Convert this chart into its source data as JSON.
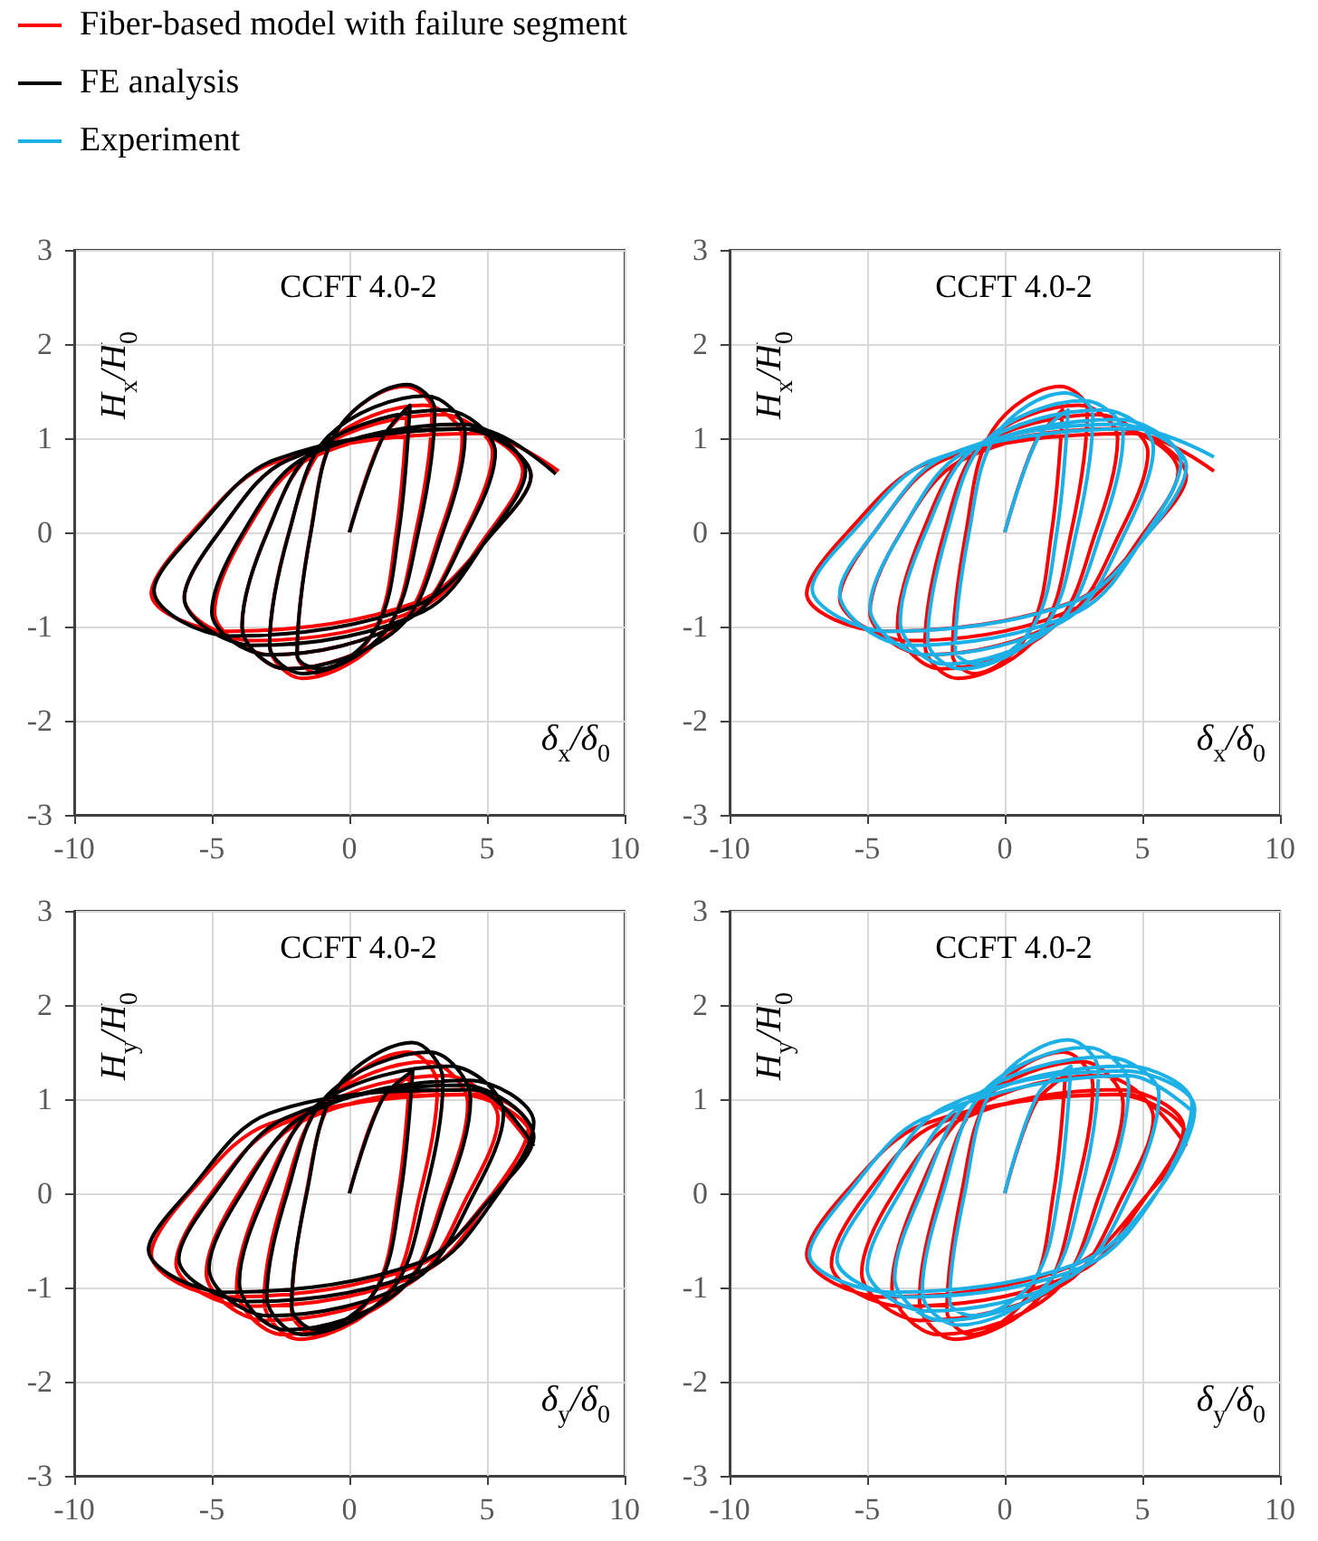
{
  "chart_data": [
    {
      "type": "line",
      "title": "CCFT 4.0-2",
      "xlabel": "δ$_{x}$/δ$_{0}$",
      "ylabel": "H$_{x}$/H$_{0}$",
      "xlim": [
        -10,
        10
      ],
      "ylim": [
        -3,
        3
      ],
      "xticks": [
        -10,
        -5,
        0,
        5,
        10
      ],
      "yticks": [
        -3,
        -2,
        -1,
        0,
        1,
        2,
        3
      ],
      "grid": true,
      "legend": "top left",
      "series": [
        {
          "name": "Fiber-based model with failure segment",
          "color": "#ff0000",
          "x": [
            0,
            1.1,
            2.1,
            1.7,
            0.9,
            -1.1,
            -1.9,
            -1.41,
            -0.43,
            2.02,
            3.0,
            2.41,
            1.23,
            -1.72,
            -2.9,
            -2.2,
            -0.8,
            2.7,
            4.1,
            3.3,
            1.7,
            -2.3,
            -3.9,
            -2.99,
            -1.17,
            3.38,
            5.2,
            4.19,
            2.17,
            -2.88,
            -4.9,
            -3.78,
            -1.54,
            4.06,
            6.3,
            5.07,
            2.61,
            -3.54,
            -6.0,
            -4.74,
            -2.22,
            4.08,
            6.6,
            5.22,
            2.46,
            -4.44,
            -7.2,
            -5.72,
            -2.76,
            4.64,
            7.6
          ],
          "values": [
            0,
            0.95,
            1.3,
            0,
            -1.05,
            -1.5,
            -1.3,
            0,
            1.09,
            1.55,
            1.3,
            0,
            -1.09,
            -1.55,
            -1.2,
            0,
            0.95,
            1.35,
            1.0,
            0,
            -1.02,
            -1.45,
            -1.0,
            0,
            0.88,
            1.25,
            0.85,
            0,
            -0.91,
            -1.3,
            -0.85,
            0,
            0.77,
            1.1,
            0.65,
            0,
            -0.8,
            -1.15,
            -0.7,
            0,
            0.77,
            1.1,
            0.6,
            0,
            -0.74,
            -1.05,
            -0.65,
            0,
            0.74,
            1.05,
            0.65
          ]
        },
        {
          "name": "FE analysis",
          "color": "#000000",
          "x": [
            0,
            1.2,
            2.2,
            1.79,
            0.97,
            -1.08,
            -1.9,
            -1.4,
            -0.4,
            2.1,
            3.1,
            2.5,
            1.3,
            -1.7,
            -2.9,
            -2.19,
            -0.77,
            2.78,
            4.2,
            3.39,
            1.77,
            -2.28,
            -3.9,
            -2.98,
            -1.14,
            3.46,
            5.3,
            4.27,
            2.21,
            -2.94,
            -5.0,
            -3.86,
            -1.58,
            4.12,
            6.4,
            5.16,
            2.68,
            -3.52,
            -6.0,
            -4.74,
            -2.22,
            4.08,
            6.6,
            5.23,
            2.49,
            -4.36,
            -7.1,
            -5.64,
            -2.72,
            4.58,
            7.5
          ],
          "values": [
            0,
            1.0,
            1.35,
            0,
            -1.02,
            -1.45,
            -1.3,
            0,
            1.1,
            1.57,
            1.3,
            0,
            -1.05,
            -1.5,
            -1.2,
            0,
            1.02,
            1.45,
            1.05,
            0,
            -1.02,
            -1.45,
            -1.0,
            0,
            0.91,
            1.3,
            0.85,
            0,
            -0.91,
            -1.3,
            -0.85,
            0,
            0.8,
            1.15,
            0.65,
            0,
            -0.84,
            -1.2,
            -0.7,
            0,
            0.77,
            1.1,
            0.6,
            0,
            -0.77,
            -1.1,
            -0.62,
            0,
            0.77,
            1.1,
            0.62
          ]
        }
      ]
    },
    {
      "type": "line",
      "title": "CCFT 4.0-2",
      "xlabel": "δ$_{x}$/δ$_{0}$",
      "ylabel": "H$_{x}$/H$_{0}$",
      "xlim": [
        -10,
        10
      ],
      "ylim": [
        -3,
        3
      ],
      "xticks": [
        -10,
        -5,
        0,
        5,
        10
      ],
      "yticks": [
        -3,
        -2,
        -1,
        0,
        1,
        2,
        3
      ],
      "grid": true,
      "series": [
        {
          "name": "Fiber-based model with failure segment",
          "color": "#ff0000",
          "x": [
            0,
            1.1,
            2.1,
            1.7,
            0.9,
            -1.1,
            -1.9,
            -1.41,
            -0.43,
            2.02,
            3.0,
            2.41,
            1.23,
            -1.72,
            -2.9,
            -2.2,
            -0.8,
            2.7,
            4.1,
            3.3,
            1.7,
            -2.3,
            -3.9,
            -2.99,
            -1.17,
            3.38,
            5.2,
            4.19,
            2.17,
            -2.88,
            -4.9,
            -3.78,
            -1.54,
            4.06,
            6.3,
            5.07,
            2.61,
            -3.54,
            -6.0,
            -4.74,
            -2.22,
            4.08,
            6.6,
            5.22,
            2.46,
            -4.44,
            -7.2,
            -5.72,
            -2.76,
            4.64,
            7.6
          ],
          "values": [
            0,
            0.95,
            1.3,
            0,
            -1.05,
            -1.5,
            -1.3,
            0,
            1.09,
            1.55,
            1.3,
            0,
            -1.09,
            -1.55,
            -1.2,
            0,
            0.95,
            1.35,
            1.0,
            0,
            -1.02,
            -1.45,
            -1.0,
            0,
            0.88,
            1.25,
            0.85,
            0,
            -0.91,
            -1.3,
            -0.85,
            0,
            0.77,
            1.1,
            0.65,
            0,
            -0.8,
            -1.15,
            -0.7,
            0,
            0.77,
            1.1,
            0.6,
            0,
            -0.74,
            -1.05,
            -0.65,
            0,
            0.74,
            1.05,
            0.65
          ]
        },
        {
          "name": "Experiment",
          "color": "#1cb0e6",
          "x": [
            0,
            1.2,
            2.3,
            1.89,
            1.07,
            -0.98,
            -1.8,
            -1.3,
            -0.3,
            2.2,
            3.2,
            2.6,
            1.4,
            -1.6,
            -2.8,
            -2.09,
            -0.67,
            2.88,
            4.3,
            3.49,
            1.87,
            -2.18,
            -3.8,
            -2.88,
            -1.04,
            3.56,
            5.4,
            4.37,
            2.31,
            -2.84,
            -4.9,
            -3.77,
            -1.51,
            4.14,
            6.4,
            5.16,
            2.68,
            -3.52,
            -6.0,
            -4.74,
            -2.22,
            4.08,
            6.6,
            5.24,
            2.52,
            -4.28,
            -7.0,
            -5.54,
            -2.62,
            4.68,
            7.6
          ],
          "values": [
            0,
            1.0,
            1.3,
            0,
            -0.98,
            -1.4,
            -1.25,
            0,
            1.04,
            1.48,
            1.25,
            0,
            -1.02,
            -1.45,
            -1.15,
            0,
            0.98,
            1.4,
            1.05,
            0,
            -0.98,
            -1.4,
            -0.95,
            0,
            0.91,
            1.3,
            0.9,
            0,
            -0.91,
            -1.3,
            -0.8,
            0,
            0.84,
            1.2,
            0.75,
            0,
            -0.84,
            -1.2,
            -0.65,
            0,
            0.8,
            1.15,
            0.7,
            0,
            -0.74,
            -1.05,
            -0.6,
            0,
            0.77,
            1.1,
            0.8
          ]
        }
      ]
    },
    {
      "type": "line",
      "title": "CCFT 4.0-2",
      "xlabel": "δ$_{y}$/δ$_{0}$",
      "ylabel": "H$_{y}$/H$_{0}$",
      "xlim": [
        -10,
        10
      ],
      "ylim": [
        -3,
        3
      ],
      "xticks": [
        -10,
        -5,
        0,
        5,
        10
      ],
      "yticks": [
        -3,
        -2,
        -1,
        0,
        1,
        2,
        3
      ],
      "grid": true,
      "series": [
        {
          "name": "Fiber-based model with failure segment",
          "color": "#ff0000",
          "x": [
            0,
            1.1,
            2.2,
            1.77,
            0.91,
            -1.24,
            -2.1,
            -1.57,
            -0.51,
            2.14,
            3.2,
            2.57,
            1.31,
            -1.84,
            -3.1,
            -2.36,
            -0.88,
            2.82,
            4.3,
            3.46,
            1.78,
            -2.42,
            -4.1,
            -3.15,
            -1.25,
            3.5,
            5.4,
            4.34,
            2.22,
            -3.08,
            -5.2,
            -4.03,
            -1.69,
            4.16,
            6.5,
            5.22,
            2.66,
            -3.74,
            -6.3,
            -5.01,
            -2.43,
            4.02,
            6.6,
            5.22,
            2.46,
            -4.44,
            -7.2,
            -5.82,
            -2.9,
            4.5,
            6.6
          ],
          "values": [
            0,
            0.95,
            1.25,
            0,
            -1.05,
            -1.5,
            -1.25,
            0,
            1.05,
            1.5,
            1.15,
            0,
            -1.09,
            -1.55,
            -1.15,
            0,
            0.98,
            1.4,
            0.95,
            0,
            -1.05,
            -1.5,
            -1.0,
            0,
            0.88,
            1.25,
            0.8,
            0,
            -0.95,
            -1.35,
            -0.85,
            0,
            0.77,
            1.1,
            0.7,
            0,
            -0.84,
            -1.2,
            -0.75,
            0,
            0.74,
            1.05,
            0.6,
            0,
            -0.77,
            -1.1,
            -0.65,
            0,
            0.74,
            1.05,
            0.5
          ]
        },
        {
          "name": "FE analysis",
          "color": "#000000",
          "x": [
            0,
            1.2,
            2.3,
            1.86,
            0.98,
            -1.22,
            -2.1,
            -1.55,
            -0.45,
            2.3,
            3.4,
            2.76,
            1.48,
            -1.72,
            -3.0,
            -2.26,
            -0.78,
            2.92,
            4.4,
            3.56,
            1.88,
            -2.32,
            -4.0,
            -3.04,
            -1.12,
            3.68,
            5.6,
            4.53,
            2.39,
            -2.96,
            -5.1,
            -3.92,
            -1.56,
            4.34,
            6.7,
            5.41,
            2.83,
            -3.62,
            -6.2,
            -4.91,
            -2.33,
            4.12,
            6.7,
            5.3,
            2.5,
            -4.5,
            -7.3,
            -5.9,
            -2.9,
            4.5,
            6.7
          ],
          "values": [
            0,
            1.0,
            1.3,
            0,
            -1.02,
            -1.45,
            -1.2,
            0,
            1.12,
            1.6,
            1.2,
            0,
            -1.05,
            -1.5,
            -1.1,
            0,
            1.05,
            1.5,
            1.0,
            0,
            -1.02,
            -1.45,
            -0.95,
            0,
            0.95,
            1.35,
            0.85,
            0,
            -0.91,
            -1.3,
            -0.8,
            0,
            0.84,
            1.2,
            0.75,
            0,
            -0.8,
            -1.15,
            -0.7,
            0,
            0.8,
            1.15,
            0.6,
            0,
            -0.74,
            -1.05,
            -0.6,
            0,
            0.85,
            1.1,
            0.5
          ]
        }
      ]
    },
    {
      "type": "line",
      "title": "CCFT 4.0-2",
      "xlabel": "δ$_{y}$/δ$_{0}$",
      "ylabel": "H$_{y}$/H$_{0}$",
      "xlim": [
        -10,
        10
      ],
      "ylim": [
        -3,
        3
      ],
      "xticks": [
        -10,
        -5,
        0,
        5,
        10
      ],
      "yticks": [
        -3,
        -2,
        -1,
        0,
        1,
        2,
        3
      ],
      "grid": true,
      "series": [
        {
          "name": "Fiber-based model with failure segment",
          "color": "#ff0000",
          "x": [
            0,
            1.1,
            2.2,
            1.77,
            0.91,
            -1.24,
            -2.1,
            -1.57,
            -0.51,
            2.14,
            3.2,
            2.57,
            1.31,
            -1.84,
            -3.1,
            -2.36,
            -0.88,
            2.82,
            4.3,
            3.46,
            1.78,
            -2.42,
            -4.1,
            -3.15,
            -1.25,
            3.5,
            5.4,
            4.34,
            2.22,
            -3.08,
            -5.2,
            -4.03,
            -1.69,
            4.16,
            6.5,
            5.22,
            2.66,
            -3.74,
            -6.3,
            -5.01,
            -2.43,
            4.02,
            6.6,
            5.22,
            2.46,
            -4.44,
            -7.2,
            -5.82,
            -2.9,
            4.5,
            6.6
          ],
          "values": [
            0,
            0.95,
            1.25,
            0,
            -1.05,
            -1.5,
            -1.25,
            0,
            1.05,
            1.5,
            1.15,
            0,
            -1.09,
            -1.55,
            -1.15,
            0,
            0.98,
            1.4,
            0.95,
            0,
            -1.05,
            -1.5,
            -1.0,
            0,
            0.88,
            1.25,
            0.8,
            0,
            -0.95,
            -1.35,
            -0.85,
            0,
            0.77,
            1.1,
            0.7,
            0,
            -0.84,
            -1.2,
            -0.75,
            0,
            0.74,
            1.05,
            0.6,
            0,
            -0.77,
            -1.1,
            -0.65,
            0,
            0.74,
            1.05,
            0.5
          ]
        },
        {
          "name": "Experiment",
          "color": "#1cb0e6",
          "x": [
            0,
            1.2,
            2.4,
            1.96,
            1.08,
            -1.12,
            -2.0,
            -1.46,
            -0.38,
            2.32,
            3.4,
            2.76,
            1.48,
            -1.72,
            -3.0,
            -2.25,
            -0.75,
            3.0,
            4.5,
            3.65,
            1.95,
            -2.3,
            -4.0,
            -3.04,
            -1.12,
            3.68,
            5.6,
            4.54,
            2.42,
            -2.88,
            -5.0,
            -3.82,
            -1.46,
            4.44,
            6.8,
            5.51,
            2.93,
            -3.52,
            -6.1,
            -4.8,
            -2.2,
            4.3,
            6.9,
            5.5,
            2.7,
            -4.1,
            -7.1,
            -5.7,
            -2.9,
            4.5,
            6.9
          ],
          "values": [
            0,
            1.05,
            1.35,
            0,
            -0.91,
            -1.3,
            -1.15,
            0,
            1.14,
            1.63,
            1.3,
            0,
            -0.98,
            -1.4,
            -1.05,
            0,
            1.09,
            1.55,
            1.15,
            0,
            -0.95,
            -1.35,
            -0.9,
            0,
            1.02,
            1.45,
            1.05,
            0,
            -0.88,
            -1.25,
            -0.8,
            0,
            0.95,
            1.35,
            0.95,
            0,
            -0.77,
            -1.1,
            -0.7,
            0,
            0.91,
            1.3,
            0.9,
            0,
            -0.74,
            -1.05,
            -0.65,
            0,
            0.8,
            1.25,
            0.85
          ]
        }
      ]
    }
  ]
}
